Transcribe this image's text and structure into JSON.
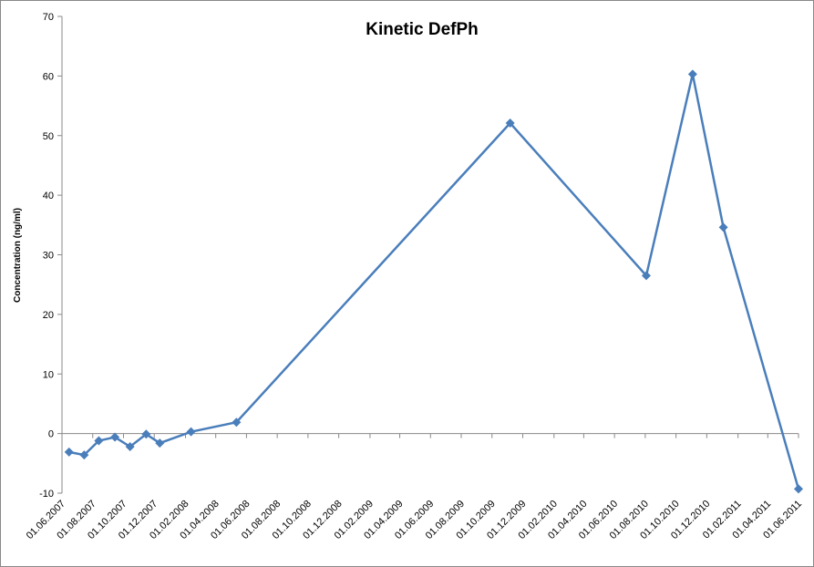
{
  "chart_data": {
    "type": "line",
    "title": "Kinetic DefPh",
    "y_label": "Concentration (ng/ml)",
    "x": [
      "15.06.2007",
      "15.07.2007",
      "13.08.2007",
      "14.09.2007",
      "14.10.2007",
      "15.11.2007",
      "12.12.2007",
      "12.02.2008",
      "12.05.2008",
      "06.11.2009",
      "03.08.2010",
      "03.11.2010",
      "03.01.2011",
      "01.06.2011"
    ],
    "series": [
      {
        "name": "DefPh",
        "color": "#4a7ebb",
        "values": [
          -3.1,
          -3.6,
          -1.2,
          -0.6,
          -2.2,
          -0.1,
          -1.6,
          0.3,
          1.9,
          52.1,
          26.5,
          60.3,
          34.6,
          -9.3
        ]
      }
    ],
    "xlim": [
      "01.06.2007",
      "01.06.2011"
    ],
    "xticks": [
      "01.06.2007",
      "01.08.2007",
      "01.10.2007",
      "01.12.2007",
      "01.02.2008",
      "01.04.2008",
      "01.06.2008",
      "01.08.2008",
      "01.10.2008",
      "01.12.2008",
      "01.02.2009",
      "01.04.2009",
      "01.06.2009",
      "01.08.2009",
      "01.10.2009",
      "01.12.2009",
      "01.02.2010",
      "01.04.2010",
      "01.06.2010",
      "01.08.2010",
      "01.10.2010",
      "01.12.2010",
      "01.02.2011",
      "01.04.2011",
      "01.06.2011"
    ],
    "ylim": [
      -10,
      70
    ],
    "yticks": [
      -10,
      0,
      10,
      20,
      30,
      40,
      50,
      60,
      70
    ]
  }
}
